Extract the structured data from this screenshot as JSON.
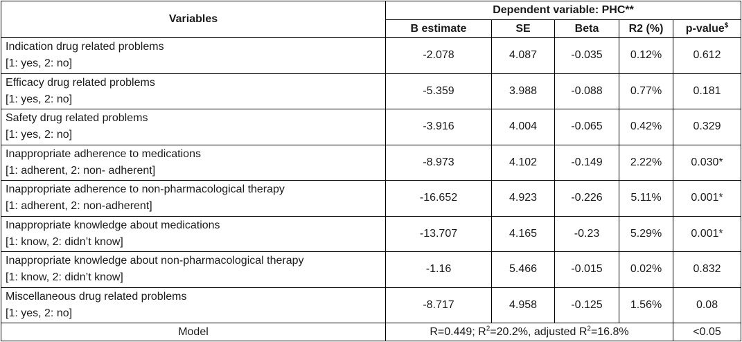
{
  "header": {
    "variables_label": "Variables",
    "dependent_label": "Dependent variable: PHC**",
    "columns": [
      {
        "label": "B estimate",
        "sup": ""
      },
      {
        "label": "SE",
        "sup": ""
      },
      {
        "label": "Beta",
        "sup": ""
      },
      {
        "label": "R2 (%)",
        "sup": ""
      },
      {
        "label": "p-value",
        "sup": "$"
      }
    ]
  },
  "rows": [
    {
      "line1": "Indication drug related problems",
      "line2": "[1: yes, 2: no]",
      "b": "-2.078",
      "se": "4.087",
      "beta": "-0.035",
      "r2": "0.12%",
      "p": "0.612"
    },
    {
      "line1": "Efficacy drug related problems",
      "line2": "[1: yes, 2: no]",
      "b": "-5.359",
      "se": "3.988",
      "beta": "-0.088",
      "r2": "0.77%",
      "p": "0.181"
    },
    {
      "line1": "Safety drug related problems",
      "line2": "[1: yes, 2: no]",
      "b": "-3.916",
      "se": "4.004",
      "beta": "-0.065",
      "r2": "0.42%",
      "p": "0.329"
    },
    {
      "line1": "Inappropriate adherence to medications",
      "line2": "[1: adherent, 2: non- adherent]",
      "b": "-8.973",
      "se": "4.102",
      "beta": "-0.149",
      "r2": "2.22%",
      "p": "0.030*"
    },
    {
      "line1": "Inappropriate adherence to non-pharmacological therapy",
      "line2": "[1: adherent, 2: non-adherent]",
      "b": "-16.652",
      "se": "4.923",
      "beta": "-0.226",
      "r2": "5.11%",
      "p": "0.001*"
    },
    {
      "line1": "Inappropriate knowledge about medications",
      "line2": "[1: know, 2: didn’t know]",
      "b": "-13.707",
      "se": "4.165",
      "beta": "-0.23",
      "r2": "5.29%",
      "p": "0.001*"
    },
    {
      "line1": "Inappropriate knowledge about non-pharmacological therapy",
      "line2": "[1: know, 2: didn’t know]",
      "b": "-1.16",
      "se": "5.466",
      "beta": "-0.015",
      "r2": "0.02%",
      "p": "0.832"
    },
    {
      "line1": "Miscellaneous drug related problems",
      "line2": "[1: yes, 2: no]",
      "b": "-8.717",
      "se": "4.958",
      "beta": "-0.125",
      "r2": "1.56%",
      "p": "0.08"
    }
  ],
  "model": {
    "label": "Model",
    "r_text": "R=0.449; R",
    "r2_sup": "2",
    "r2_value": "=20.2%, adjusted R",
    "adj_sup": "2",
    "adj_value": "=16.8%",
    "p": "<0.05"
  }
}
